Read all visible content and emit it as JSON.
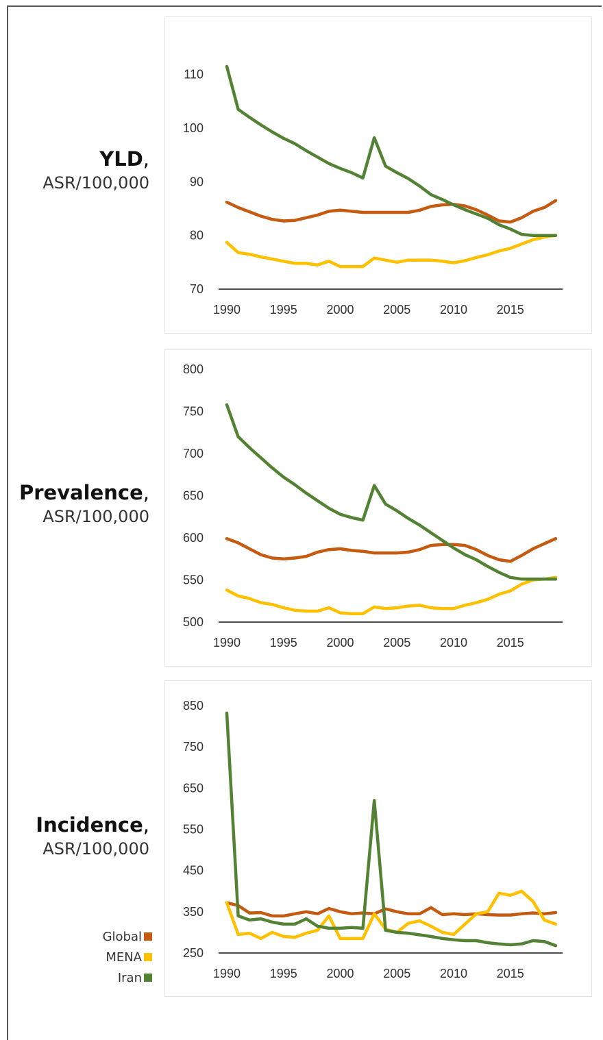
{
  "rows": [
    {
      "title": "YLD",
      "comma": ",",
      "unit": "ASR/100,000"
    },
    {
      "title": "Prevalence",
      "comma": ",",
      "unit": "ASR/100,000"
    },
    {
      "title": "Incidence",
      "comma": ",",
      "unit": "ASR/100,000"
    }
  ],
  "legend": [
    {
      "name": "Global",
      "color": "#c55a11"
    },
    {
      "name": "MENA",
      "color": "#ffc000"
    },
    {
      "name": "Iran",
      "color": "#548235"
    }
  ],
  "chart_data": [
    {
      "type": "line",
      "title": "YLD, ASR/100,000",
      "x": [
        1990,
        1991,
        1992,
        1993,
        1994,
        1995,
        1996,
        1997,
        1998,
        1999,
        2000,
        2001,
        2002,
        2003,
        2004,
        2005,
        2006,
        2007,
        2008,
        2009,
        2010,
        2011,
        2012,
        2013,
        2014,
        2015,
        2016,
        2017,
        2018,
        2019
      ],
      "xticks": [
        "1990",
        "1995",
        "2000",
        "2005",
        "2010",
        "2015"
      ],
      "yticks": [
        "70",
        "80",
        "90",
        "100",
        "110"
      ],
      "ylim": [
        70,
        112
      ],
      "series": [
        {
          "name": "Global",
          "color": "#c55a11",
          "values": [
            86.2,
            85.2,
            84.4,
            83.6,
            83.0,
            82.7,
            82.8,
            83.3,
            83.8,
            84.5,
            84.7,
            84.5,
            84.3,
            84.3,
            84.3,
            84.3,
            84.3,
            84.7,
            85.4,
            85.7,
            85.8,
            85.5,
            84.8,
            83.8,
            82.7,
            82.5,
            83.3,
            84.5,
            85.2,
            86.5
          ]
        },
        {
          "name": "MENA",
          "color": "#ffc000",
          "values": [
            78.7,
            76.8,
            76.5,
            76.0,
            75.6,
            75.2,
            74.8,
            74.8,
            74.5,
            75.2,
            74.2,
            74.2,
            74.2,
            75.8,
            75.4,
            75.0,
            75.4,
            75.4,
            75.4,
            75.2,
            74.9,
            75.3,
            75.9,
            76.4,
            77.1,
            77.6,
            78.4,
            79.2,
            79.7,
            80.0
          ]
        },
        {
          "name": "Iran",
          "color": "#548235",
          "values": [
            111.5,
            103.5,
            102.0,
            100.6,
            99.3,
            98.1,
            97.1,
            95.8,
            94.6,
            93.4,
            92.5,
            91.7,
            90.7,
            98.2,
            92.9,
            91.7,
            90.6,
            89.2,
            87.6,
            86.7,
            85.7,
            84.8,
            84.0,
            83.2,
            82.0,
            81.2,
            80.2,
            80.0,
            80.0,
            80.0
          ]
        }
      ]
    },
    {
      "type": "line",
      "title": "Prevalence, ASR/100,000",
      "x": [
        1990,
        1991,
        1992,
        1993,
        1994,
        1995,
        1996,
        1997,
        1998,
        1999,
        2000,
        2001,
        2002,
        2003,
        2004,
        2005,
        2006,
        2007,
        2008,
        2009,
        2010,
        2011,
        2012,
        2013,
        2014,
        2015,
        2016,
        2017,
        2018,
        2019
      ],
      "xticks": [
        "1990",
        "1995",
        "2000",
        "2005",
        "2010",
        "2015"
      ],
      "yticks": [
        "500",
        "550",
        "600",
        "650",
        "700",
        "750",
        "800"
      ],
      "ylim": [
        500,
        800
      ],
      "series": [
        {
          "name": "Global",
          "color": "#c55a11",
          "values": [
            599,
            594,
            587,
            580,
            576,
            575,
            576,
            578,
            583,
            586,
            587,
            585,
            584,
            582,
            582,
            582,
            583,
            586,
            591,
            592,
            592,
            591,
            586,
            579,
            574,
            572,
            579,
            587,
            593,
            599
          ]
        },
        {
          "name": "MENA",
          "color": "#ffc000",
          "values": [
            538,
            531,
            528,
            523,
            521,
            517,
            514,
            513,
            513,
            517,
            511,
            510,
            510,
            518,
            516,
            517,
            519,
            520,
            517,
            516,
            516,
            520,
            523,
            527,
            533,
            537,
            545,
            550,
            551,
            553
          ]
        },
        {
          "name": "Iran",
          "color": "#548235",
          "values": [
            758,
            720,
            707,
            695,
            683,
            672,
            663,
            653,
            644,
            635,
            628,
            624,
            621,
            662,
            640,
            632,
            623,
            615,
            606,
            597,
            588,
            580,
            574,
            566,
            559,
            553,
            551,
            551,
            551,
            551
          ]
        }
      ]
    },
    {
      "type": "line",
      "title": "Incidence, ASR/100,000",
      "x": [
        1990,
        1991,
        1992,
        1993,
        1994,
        1995,
        1996,
        1997,
        1998,
        1999,
        2000,
        2001,
        2002,
        2003,
        2004,
        2005,
        2006,
        2007,
        2008,
        2009,
        2010,
        2011,
        2012,
        2013,
        2014,
        2015,
        2016,
        2017,
        2018,
        2019
      ],
      "xticks": [
        "1990",
        "1995",
        "2000",
        "2005",
        "2010",
        "2015"
      ],
      "yticks": [
        "250",
        "350",
        "450",
        "550",
        "650",
        "750",
        "850"
      ],
      "ylim": [
        250,
        860
      ],
      "series": [
        {
          "name": "Global",
          "color": "#c55a11",
          "values": [
            372,
            365,
            347,
            348,
            340,
            340,
            345,
            350,
            345,
            358,
            350,
            345,
            347,
            345,
            357,
            350,
            345,
            345,
            360,
            343,
            345,
            343,
            345,
            343,
            342,
            342,
            345,
            347,
            345,
            348
          ]
        },
        {
          "name": "MENA",
          "color": "#ffc000",
          "values": [
            372,
            295,
            298,
            285,
            300,
            290,
            288,
            298,
            305,
            340,
            285,
            285,
            285,
            345,
            308,
            300,
            322,
            328,
            315,
            300,
            295,
            320,
            345,
            350,
            395,
            390,
            400,
            375,
            330,
            320
          ]
        },
        {
          "name": "Iran",
          "color": "#548235",
          "values": [
            832,
            340,
            330,
            333,
            325,
            320,
            320,
            333,
            315,
            310,
            310,
            312,
            310,
            620,
            305,
            300,
            298,
            294,
            290,
            285,
            282,
            280,
            280,
            275,
            272,
            270,
            272,
            280,
            278,
            268
          ]
        }
      ]
    }
  ]
}
